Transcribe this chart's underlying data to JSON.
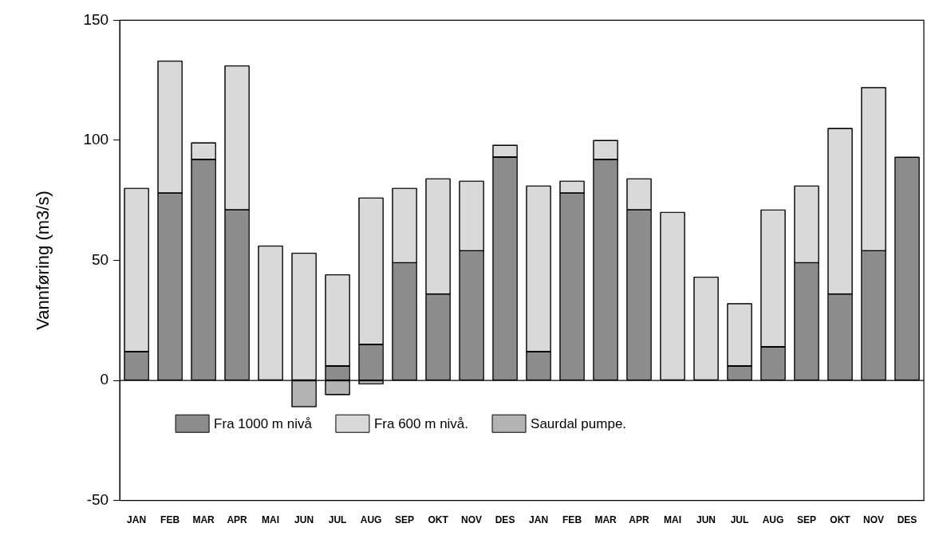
{
  "chart_data": {
    "type": "bar",
    "ylabel": "Vannføring (m3/s)",
    "categories": [
      "JAN",
      "FEB",
      "MAR",
      "APR",
      "MAI",
      "JUN",
      "JUL",
      "AUG",
      "SEP",
      "OKT",
      "NOV",
      "DES",
      "JAN",
      "FEB",
      "MAR",
      "APR",
      "MAI",
      "JUN",
      "JUL",
      "AUG",
      "SEP",
      "OKT",
      "NOV",
      "DES"
    ],
    "series": [
      {
        "name": "Fra 1000 m nivå",
        "color": "#8c8c8c",
        "values": [
          12,
          78,
          92,
          71,
          null,
          null,
          6,
          15,
          49,
          36,
          54,
          93,
          12,
          78,
          92,
          71,
          null,
          null,
          6,
          14,
          49,
          36,
          54,
          93
        ]
      },
      {
        "name": "Fra 600 m nivå.",
        "color": "#d9d9d9",
        "values": [
          68,
          55,
          7,
          60,
          56,
          53,
          38,
          61,
          31,
          48,
          29,
          5,
          69,
          5,
          8,
          13,
          70,
          43,
          26,
          57,
          32,
          69,
          68,
          null
        ]
      },
      {
        "name": "Saurdal pumpe.",
        "color": "#b3b3b3",
        "values": [
          null,
          null,
          null,
          null,
          null,
          -11,
          -6,
          -1.5,
          null,
          null,
          null,
          null,
          null,
          null,
          null,
          null,
          null,
          null,
          null,
          null,
          null,
          null,
          null,
          null
        ]
      }
    ],
    "stacked": true,
    "ylim": [
      -50,
      150
    ],
    "yticks": [
      -50,
      0,
      50,
      100,
      150
    ],
    "grid": false,
    "ref_lines": [
      {
        "axis": "y",
        "value": 0,
        "color": "#000000"
      }
    ],
    "legend": "bottom"
  }
}
